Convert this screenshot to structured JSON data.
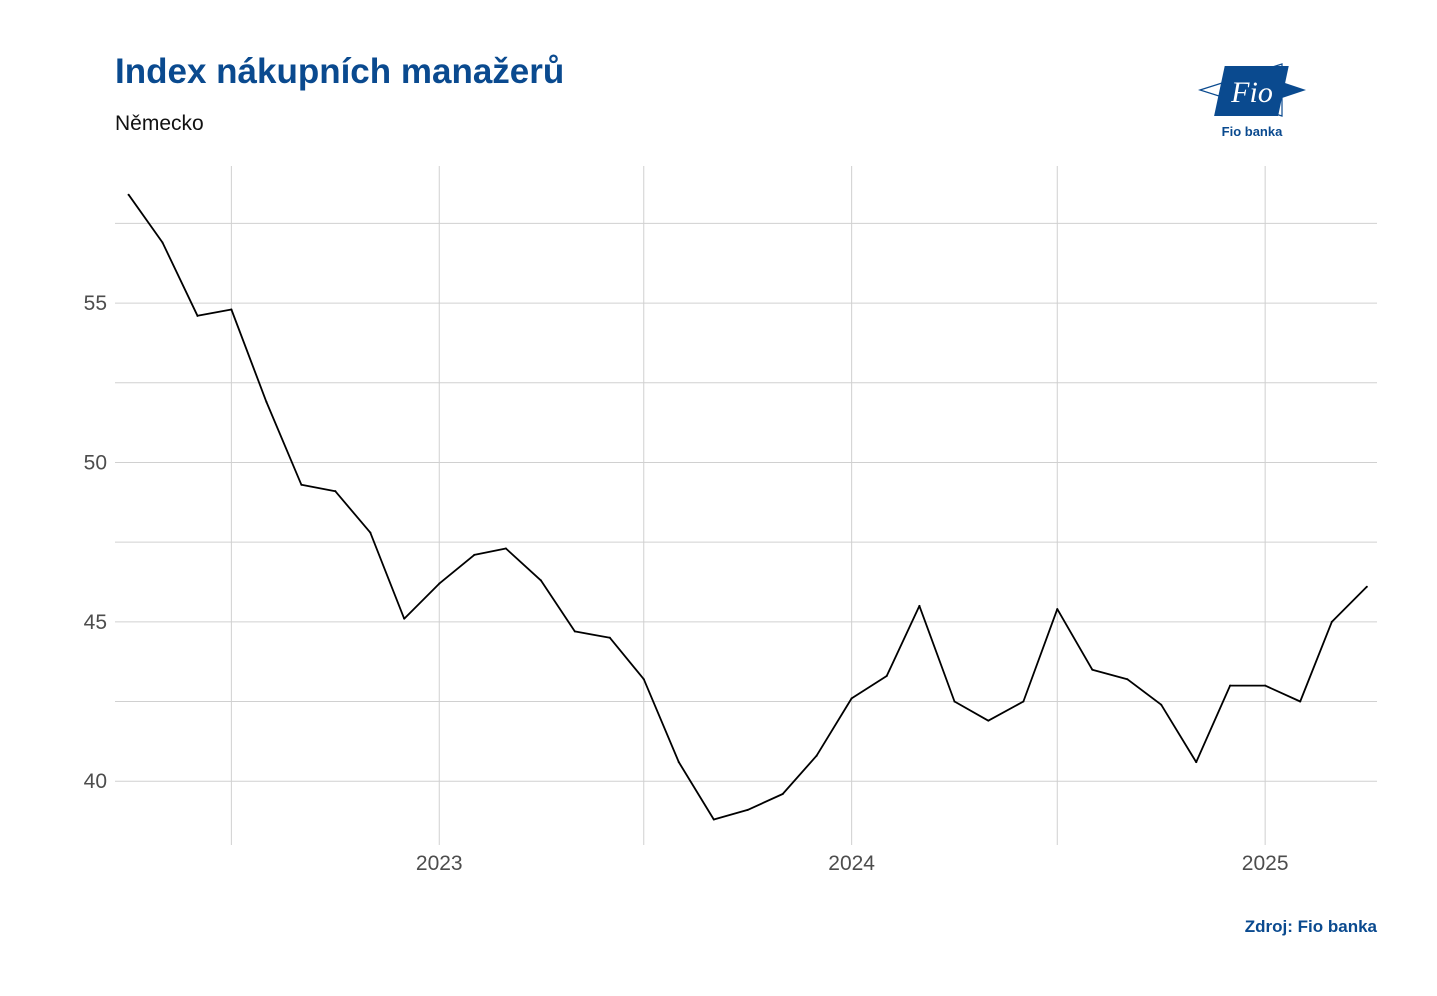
{
  "header": {
    "title": "Index nákupních manažerů",
    "subtitle": "Německo"
  },
  "logo": {
    "label": "Fio banka",
    "mark_text": "Fio",
    "color": "#0a4a8f"
  },
  "footer": {
    "source": "Zdroj: Fio banka"
  },
  "chart_data": {
    "type": "line",
    "x_type": "date",
    "xlim": [
      "2022-03-20",
      "2025-04-10"
    ],
    "ylim": [
      38,
      59.3
    ],
    "x_ticks": [
      {
        "date": "2023-01-01",
        "label": "2023"
      },
      {
        "date": "2024-01-01",
        "label": "2024"
      },
      {
        "date": "2025-01-01",
        "label": "2025"
      }
    ],
    "y_ticks": [
      {
        "value": 40,
        "label": "40"
      },
      {
        "value": 45,
        "label": "45"
      },
      {
        "value": 50,
        "label": "50"
      },
      {
        "value": 55,
        "label": "55"
      }
    ],
    "grid": true,
    "line_color": "#000000",
    "series": [
      {
        "points": [
          {
            "date": "2022-04-01",
            "value": 58.4
          },
          {
            "date": "2022-05-01",
            "value": 56.9
          },
          {
            "date": "2022-06-01",
            "value": 54.6
          },
          {
            "date": "2022-07-01",
            "value": 54.8
          },
          {
            "date": "2022-08-01",
            "value": 51.9
          },
          {
            "date": "2022-09-01",
            "value": 49.3
          },
          {
            "date": "2022-10-01",
            "value": 49.1
          },
          {
            "date": "2022-11-01",
            "value": 47.8
          },
          {
            "date": "2022-12-01",
            "value": 45.1
          },
          {
            "date": "2023-01-01",
            "value": 46.2
          },
          {
            "date": "2023-02-01",
            "value": 47.1
          },
          {
            "date": "2023-03-01",
            "value": 47.3
          },
          {
            "date": "2023-04-01",
            "value": 46.3
          },
          {
            "date": "2023-05-01",
            "value": 44.7
          },
          {
            "date": "2023-06-01",
            "value": 44.5
          },
          {
            "date": "2023-07-01",
            "value": 43.2
          },
          {
            "date": "2023-08-01",
            "value": 40.6
          },
          {
            "date": "2023-09-01",
            "value": 38.8
          },
          {
            "date": "2023-10-01",
            "value": 39.1
          },
          {
            "date": "2023-11-01",
            "value": 39.6
          },
          {
            "date": "2023-12-01",
            "value": 40.8
          },
          {
            "date": "2024-01-01",
            "value": 42.6
          },
          {
            "date": "2024-02-01",
            "value": 43.3
          },
          {
            "date": "2024-03-01",
            "value": 45.5
          },
          {
            "date": "2024-04-01",
            "value": 42.5
          },
          {
            "date": "2024-05-01",
            "value": 41.9
          },
          {
            "date": "2024-06-01",
            "value": 42.5
          },
          {
            "date": "2024-07-01",
            "value": 45.4
          },
          {
            "date": "2024-08-01",
            "value": 43.5
          },
          {
            "date": "2024-09-01",
            "value": 43.2
          },
          {
            "date": "2024-10-01",
            "value": 42.4
          },
          {
            "date": "2024-11-01",
            "value": 40.6
          },
          {
            "date": "2024-12-01",
            "value": 43.0
          },
          {
            "date": "2025-01-01",
            "value": 43.0
          },
          {
            "date": "2025-02-01",
            "value": 42.5
          },
          {
            "date": "2025-03-01",
            "value": 45.0
          },
          {
            "date": "2025-04-01",
            "value": 46.1
          }
        ]
      }
    ]
  }
}
